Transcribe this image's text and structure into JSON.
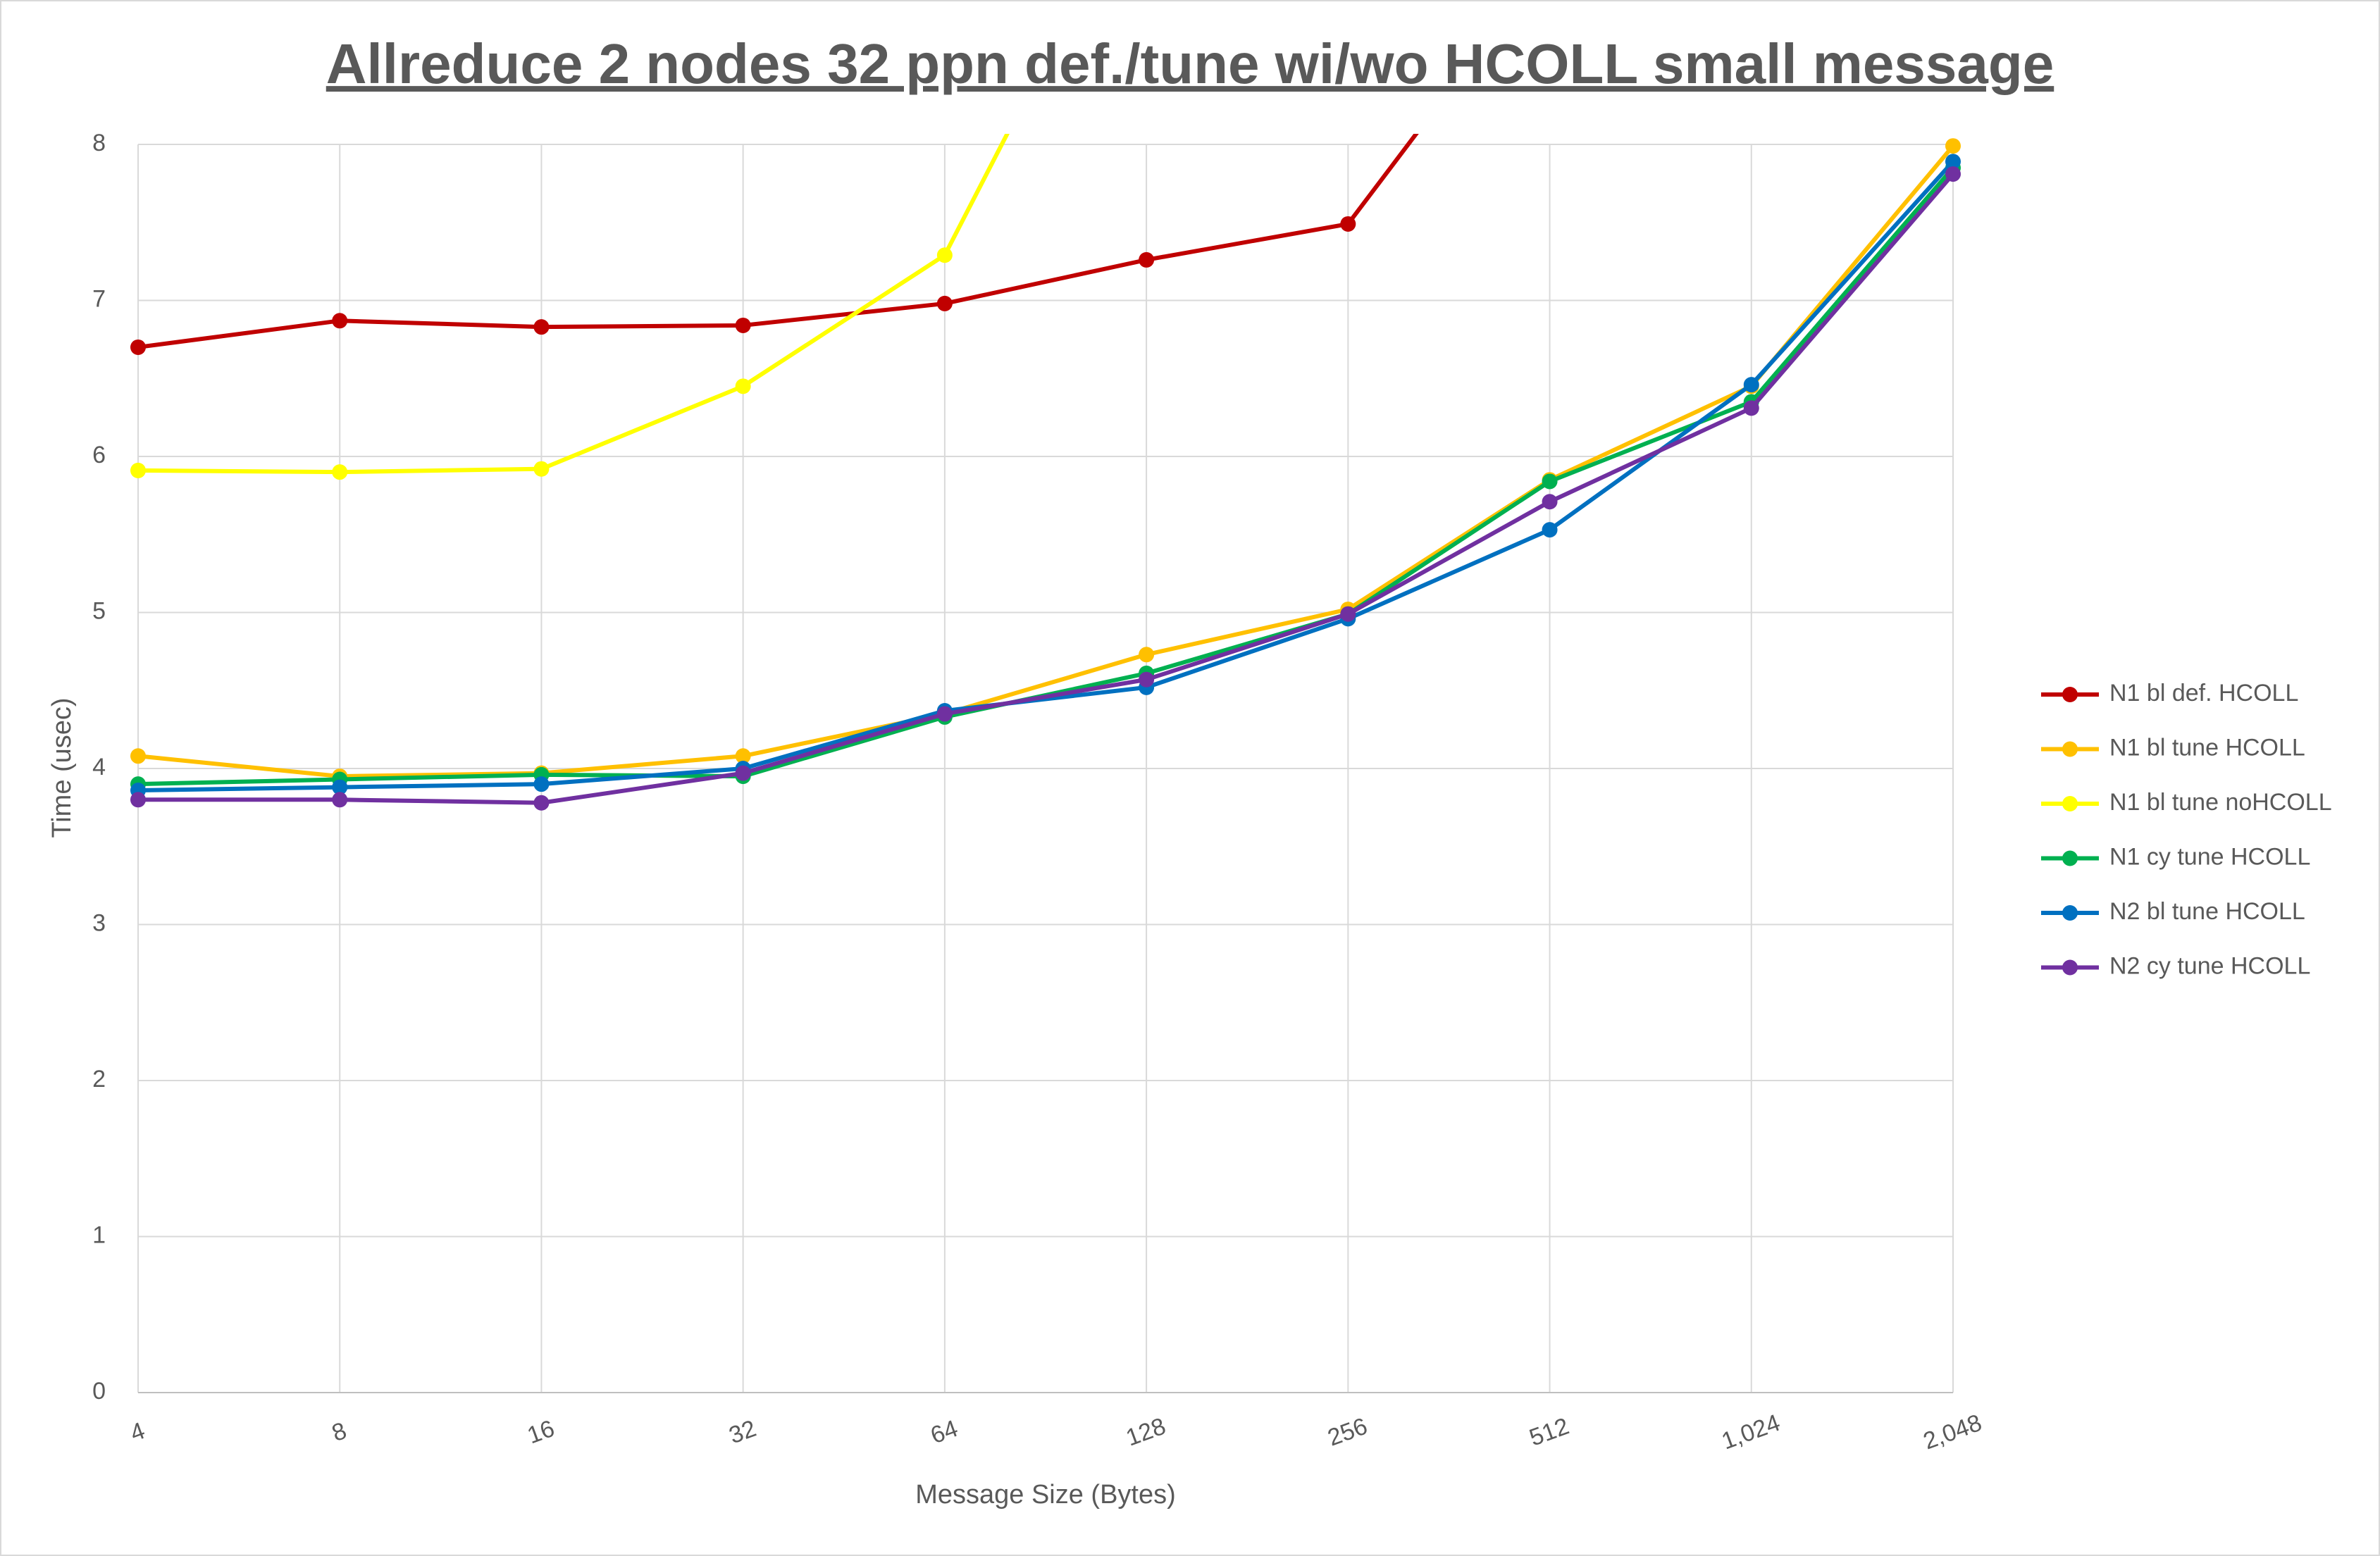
{
  "chart_data": {
    "type": "line",
    "title": "Allreduce 2 nodes 32 ppn def./tune wi/wo HCOLL small message",
    "x_label": "Message Size (Bytes)",
    "y_label": "Time (usec)",
    "categories": [
      "4",
      "8",
      "16",
      "32",
      "64",
      "128",
      "256",
      "512",
      "1,024",
      "2,048"
    ],
    "ylim": [
      0,
      8
    ],
    "yticks": [
      0,
      1,
      2,
      3,
      4,
      5,
      6,
      7,
      8
    ],
    "grid": true,
    "legend": "right",
    "series": [
      {
        "name": "N1 bl def. HCOLL",
        "color": "#c00000",
        "values": [
          6.7,
          6.87,
          6.83,
          6.84,
          6.98,
          7.26,
          7.49,
          9.2,
          null,
          null
        ]
      },
      {
        "name": "N1 bl tune HCOLL",
        "color": "#ffc000",
        "values": [
          4.08,
          3.95,
          3.97,
          4.08,
          4.35,
          4.73,
          5.02,
          5.85,
          6.45,
          7.99
        ]
      },
      {
        "name": "N1 bl tune noHCOLL",
        "color": "#ffff00",
        "values": [
          5.91,
          5.9,
          5.92,
          6.45,
          7.29,
          9.8,
          null,
          null,
          null,
          null
        ]
      },
      {
        "name": "N1 cy tune HCOLL",
        "color": "#00b050",
        "values": [
          3.9,
          3.93,
          3.96,
          3.95,
          4.33,
          4.61,
          4.99,
          5.84,
          6.35,
          7.85
        ]
      },
      {
        "name": "N2 bl tune HCOLL",
        "color": "#0070c0",
        "values": [
          3.86,
          3.88,
          3.9,
          4.0,
          4.37,
          4.52,
          4.96,
          5.53,
          6.46,
          7.89
        ]
      },
      {
        "name": "N2 cy tune HCOLL",
        "color": "#7030a0",
        "values": [
          3.8,
          3.8,
          3.78,
          3.97,
          4.35,
          4.57,
          4.99,
          5.71,
          6.31,
          7.81
        ]
      }
    ]
  }
}
